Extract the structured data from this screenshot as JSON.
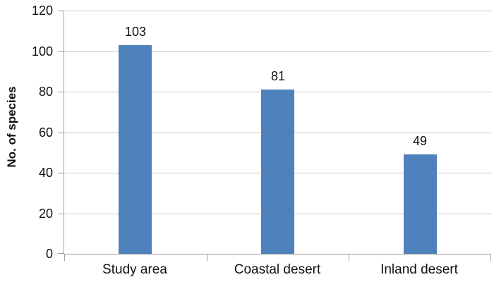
{
  "chart_data": {
    "type": "bar",
    "title": "",
    "categories": [
      "Study area",
      "Coastal desert",
      "Inland desert"
    ],
    "values": [
      103,
      81,
      49
    ],
    "xlabel": "",
    "ylabel": "No. of species",
    "ylim": [
      0,
      120
    ],
    "yticks": [
      0,
      20,
      40,
      60,
      80,
      100,
      120
    ],
    "grid": true,
    "legend": false,
    "data_labels_shown": true,
    "colors": {
      "bar": "#4f81bd",
      "gridline": "#c8c8c8",
      "axis": "#a0a0a0",
      "text": "#111111",
      "background": "#ffffff"
    }
  }
}
